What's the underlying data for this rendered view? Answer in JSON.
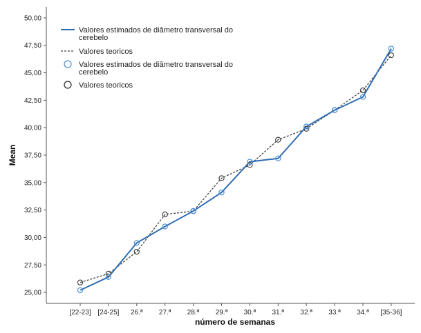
{
  "chart_data": {
    "type": "line",
    "xlabel": "número de semanas",
    "ylabel": "Mean",
    "ylim": [
      24,
      51
    ],
    "yticks": [
      "25,00",
      "27,50",
      "30,00",
      "32,50",
      "35,00",
      "37,50",
      "40,00",
      "42,50",
      "45,00",
      "47,50",
      "50,00"
    ],
    "categories": [
      "[22-23]",
      "[24-25]",
      "26.ª",
      "27.ª",
      "28.ª",
      "29.ª",
      "30.ª",
      "31.ª",
      "32.ª",
      "33.ª",
      "34.ª",
      "[35-36]"
    ],
    "grid": false,
    "legend_position": "top-left",
    "series": [
      {
        "name": "Valores estimados de diâmetro transversal do cerebelo",
        "color": "#2f6db5",
        "line_style": "solid",
        "values": [
          25.2,
          26.4,
          29.5,
          31.0,
          32.4,
          34.1,
          36.9,
          37.2,
          40.1,
          41.6,
          42.8,
          47.2
        ]
      },
      {
        "name": "Valores teoricos",
        "color": "#444444",
        "line_style": "dashed",
        "values": [
          25.9,
          26.7,
          28.7,
          32.1,
          32.4,
          35.4,
          36.6,
          38.9,
          39.9,
          41.6,
          43.4,
          46.6
        ]
      }
    ],
    "legend": [
      {
        "label": "Valores estimados de diâmetro transversal do",
        "label2": "cerebelo",
        "kind": "line",
        "series": 0
      },
      {
        "label": "Valores teoricos",
        "label2": "",
        "kind": "line",
        "series": 1
      },
      {
        "label": "Valores estimados de diâmetro transversal do",
        "label2": "cerebelo",
        "kind": "marker",
        "series": 0
      },
      {
        "label": "Valores teoricos",
        "label2": "",
        "kind": "marker",
        "series": 1
      }
    ]
  }
}
